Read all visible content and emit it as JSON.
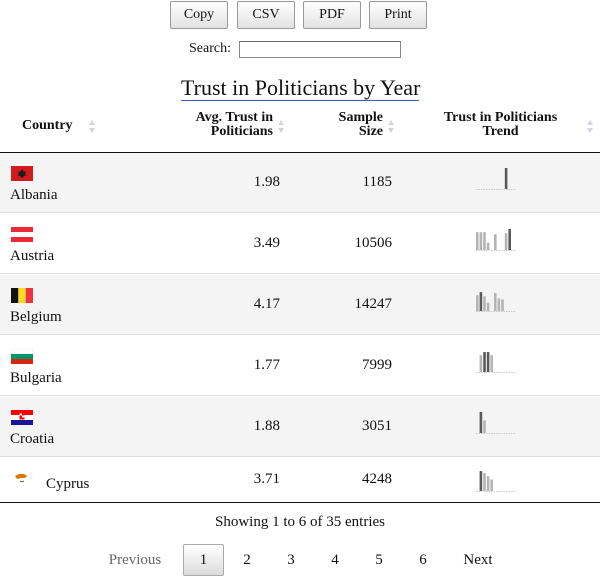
{
  "toolbar": {
    "buttons": [
      "Copy",
      "CSV",
      "PDF",
      "Print"
    ]
  },
  "search": {
    "label": "Search:",
    "value": ""
  },
  "table": {
    "caption": "Trust in Politicians by Year",
    "columns": [
      {
        "line1": "Country",
        "line2": ""
      },
      {
        "line1": "Avg. Trust in",
        "line2": "Politicians"
      },
      {
        "line1": "Sample",
        "line2": "Size"
      },
      {
        "line1": "Trust in Politicians",
        "line2": "Trend"
      }
    ],
    "rows": [
      {
        "country": "Albania",
        "flag": "albania",
        "avg": "1.98",
        "sample": "1185",
        "trend": [
          0,
          0,
          0,
          0,
          0,
          0,
          0,
          0,
          1.0,
          0,
          0
        ]
      },
      {
        "country": "Austria",
        "flag": "austria",
        "avg": "3.49",
        "sample": "10506",
        "trend": [
          0.85,
          0.85,
          0.85,
          0.35,
          0,
          0.75,
          0,
          0,
          0.8,
          1.0
        ]
      },
      {
        "country": "Belgium",
        "flag": "belgium",
        "avg": "4.17",
        "sample": "14247",
        "trend": [
          0.75,
          0.9,
          0.7,
          0.4,
          0,
          0.85,
          0.6,
          0.55
        ]
      },
      {
        "country": "Bulgaria",
        "flag": "bulgaria",
        "avg": "1.77",
        "sample": "7999",
        "trend": [
          0,
          0.8,
          0.95,
          0.95,
          0.8
        ]
      },
      {
        "country": "Croatia",
        "flag": "croatia",
        "avg": "1.88",
        "sample": "3051",
        "trend": [
          0,
          1.0,
          0.6
        ]
      },
      {
        "country": "Cyprus",
        "flag": "cyprus",
        "avg": "3.71",
        "sample": "4248",
        "trend": [
          0,
          0.95,
          0.85,
          0.7,
          0.55
        ]
      }
    ]
  },
  "info": "Showing 1 to 6 of 35 entries",
  "pagination": {
    "previous": "Previous",
    "next": "Next",
    "pages": [
      "1",
      "2",
      "3",
      "4",
      "5",
      "6"
    ],
    "current": "1"
  },
  "colors": {
    "spark_light": "#b4b4b4",
    "spark_dark": "#5a5a5a",
    "caption_underline": "#3b5ab5"
  }
}
